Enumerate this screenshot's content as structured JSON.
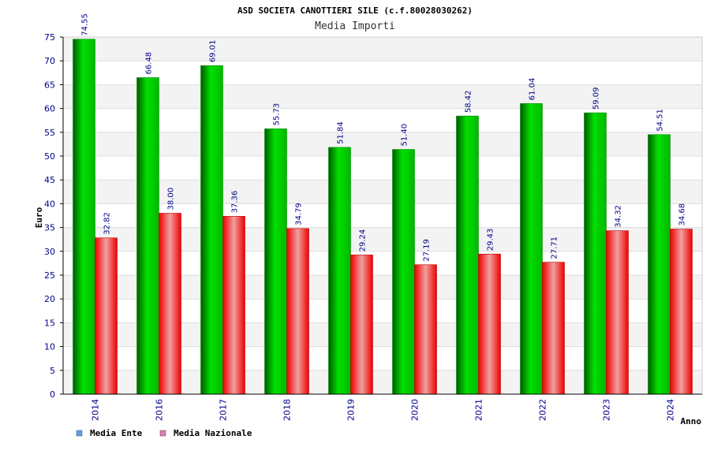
{
  "chart_data": {
    "type": "bar",
    "title": "ASD SOCIETA CANOTTIERI SILE (c.f.80028030262)",
    "subtitle": "Media Importi",
    "xlabel": "Anno",
    "ylabel": "Euro",
    "ylim": [
      0,
      75
    ],
    "yticks": [
      "0",
      "5",
      "10",
      "15",
      "20",
      "25",
      "30",
      "35",
      "40",
      "45",
      "50",
      "55",
      "60",
      "65",
      "70",
      "75"
    ],
    "grid": true,
    "legend_position": "bottom-left",
    "categories": [
      "2014",
      "2016",
      "2017",
      "2018",
      "2019",
      "2020",
      "2021",
      "2022",
      "2023",
      "2024"
    ],
    "series": [
      {
        "name": "Media Ente",
        "values": [
          74.55,
          66.48,
          69.01,
          55.73,
          51.84,
          51.4,
          58.42,
          61.04,
          59.09,
          54.51
        ],
        "labels": [
          "74.55",
          "66.48",
          "69.01",
          "55.73",
          "51.84",
          "51.40",
          "58.42",
          "61.04",
          "59.09",
          "54.51"
        ],
        "color": "#00b000",
        "legend_color": "#5aa0e8"
      },
      {
        "name": "Media Nazionale",
        "values": [
          32.82,
          38.0,
          37.36,
          34.79,
          29.24,
          27.19,
          29.43,
          27.71,
          34.32,
          34.68
        ],
        "labels": [
          "32.82",
          "38.00",
          "37.36",
          "34.79",
          "29.24",
          "27.19",
          "29.43",
          "27.71",
          "34.32",
          "34.68"
        ],
        "color": "#ee0000",
        "legend_color": "#e07ab8"
      }
    ]
  }
}
